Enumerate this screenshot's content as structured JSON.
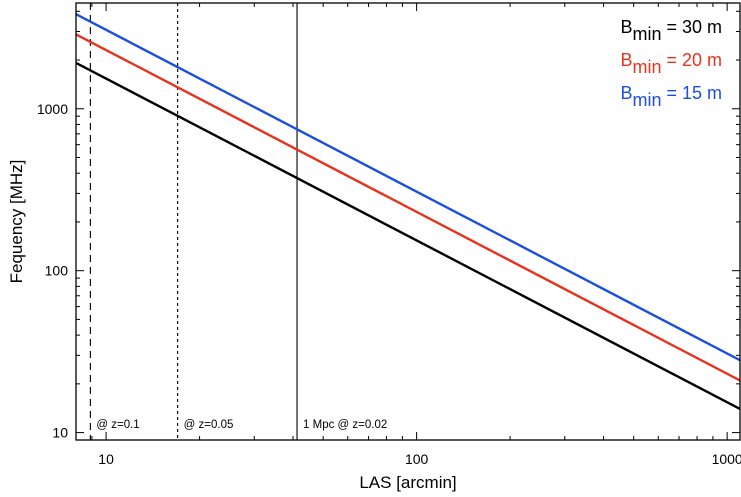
{
  "chart_data": {
    "type": "line",
    "xscale": "log",
    "yscale": "log",
    "xlabel": "LAS [arcmin]",
    "ylabel": "Fequency [MHz]",
    "xlim": [
      8,
      1100
    ],
    "ylim": [
      9,
      4500
    ],
    "x_ticks": [
      {
        "value": 10,
        "label": "10"
      },
      {
        "value": 100,
        "label": "100"
      },
      {
        "value": 1000,
        "label": "1000"
      }
    ],
    "y_ticks": [
      {
        "value": 10,
        "label": "10"
      },
      {
        "value": 100,
        "label": "100"
      },
      {
        "value": 1000,
        "label": "1000"
      }
    ],
    "grid": false,
    "legend_position": "top-right",
    "series": [
      {
        "label_main": "B",
        "label_sub": "min",
        "label_rest": " = 30 m",
        "color": "#000000",
        "points": [
          [
            8,
            1920
          ],
          [
            1100,
            14
          ]
        ]
      },
      {
        "label_main": "B",
        "label_sub": "min",
        "label_rest": " = 20 m",
        "color": "#e8331c",
        "points": [
          [
            8,
            2880
          ],
          [
            1100,
            21
          ]
        ]
      },
      {
        "label_main": "B",
        "label_sub": "min",
        "label_rest": " = 15 m",
        "color": "#1a4fe0",
        "points": [
          [
            8,
            3840
          ],
          [
            1100,
            28
          ]
        ]
      }
    ],
    "vertical_lines": [
      {
        "x": 8.9,
        "style": "dashed",
        "label": "@ z=0.1"
      },
      {
        "x": 17,
        "style": "dotted",
        "label": "@ z=0.05"
      },
      {
        "x": 41.2,
        "style": "solid",
        "label": "1 Mpc @ z=0.02"
      }
    ]
  }
}
